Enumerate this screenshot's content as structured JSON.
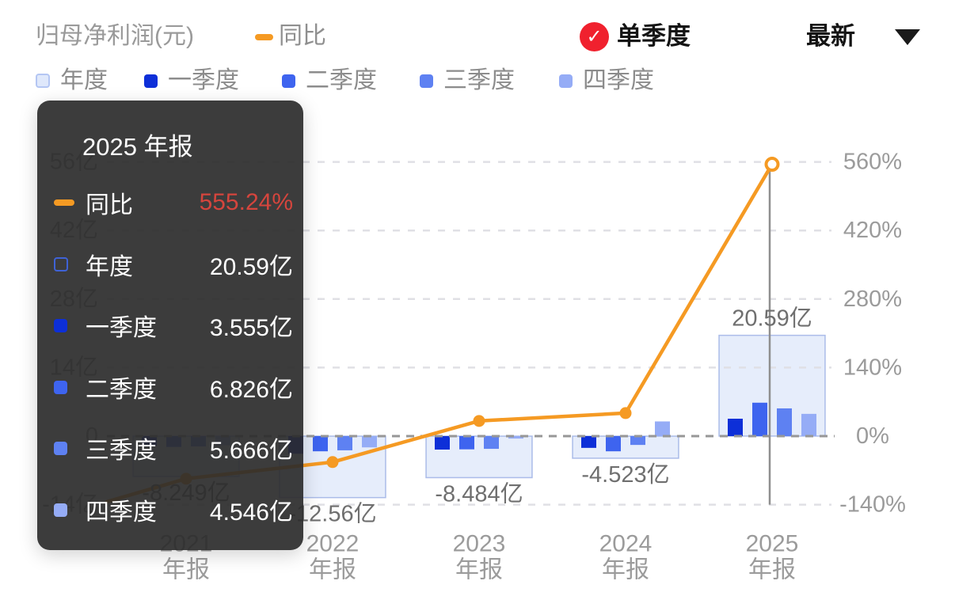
{
  "header": {
    "title": "归母净利润(元)",
    "yoy_legend_label": "同比",
    "quarter_mode_label": "单季度",
    "latest_label": "最新",
    "check_icon": "check-circle",
    "dropdown_icon": "triangle-down"
  },
  "colors": {
    "orange": "#F59A23",
    "red_badge": "#F0212E",
    "red_value": "#D5453D",
    "annual_fill": "rgba(199,214,246,0.45)",
    "annual_stroke": "rgba(125,150,220,0.6)",
    "annual_legend_fill": "#dfe8fb",
    "q1": "#0D2FD8",
    "q2": "#3E64EF",
    "q3": "#5E81F2",
    "q4": "#95ACF6",
    "grid_light": "#E0E0E5",
    "grid_zero": "#979797",
    "crosshair": "#8F8F8F",
    "axis_text": "#9B9B9B",
    "value_label": "#6F6F6F"
  },
  "legend": [
    {
      "id": "annual",
      "label": "年度"
    },
    {
      "id": "q1",
      "label": "一季度"
    },
    {
      "id": "q2",
      "label": "二季度"
    },
    {
      "id": "q3",
      "label": "三季度"
    },
    {
      "id": "q4",
      "label": "四季度"
    }
  ],
  "tooltip": {
    "title": "2025 年报",
    "rows": [
      {
        "label": "同比",
        "value": "555.24%"
      },
      {
        "label": "年度",
        "value": "20.59亿"
      },
      {
        "label": "一季度",
        "value": "3.555亿"
      },
      {
        "label": "二季度",
        "value": "6.826亿"
      },
      {
        "label": "三季度",
        "value": "5.666亿"
      },
      {
        "label": "四季度",
        "value": "4.546亿"
      }
    ]
  },
  "chart_data": {
    "type": "bar+line combo",
    "title": "归母净利润(元)",
    "categories": [
      "2021",
      "2022",
      "2023",
      "2024",
      "2025"
    ],
    "category_sub_label": "年报",
    "unit_left": "亿",
    "unit_right": "%",
    "left_axis_ticks": [
      "56亿",
      "42亿",
      "28亿",
      "14亿",
      "0",
      "-14亿"
    ],
    "left_axis_values": [
      56,
      42,
      28,
      14,
      0,
      -14
    ],
    "right_axis_ticks": [
      "560%",
      "420%",
      "280%",
      "140%",
      "0%",
      "-140%"
    ],
    "right_axis_values": [
      560,
      420,
      280,
      140,
      0,
      -140
    ],
    "annual": {
      "name": "年度",
      "values": [
        -8.249,
        -12.56,
        -8.484,
        -4.523,
        20.59
      ],
      "labels": [
        "-8.249亿",
        "-12.56亿",
        "-8.484亿",
        "-4.523亿",
        "20.59亿"
      ]
    },
    "quarter_series": [
      {
        "id": "q1",
        "name": "一季度",
        "values": [
          -2.0,
          -3.6,
          -2.75,
          -2.4,
          3.555
        ]
      },
      {
        "id": "q2",
        "name": "二季度",
        "values": [
          -2.2,
          -3.1,
          -2.7,
          -3.1,
          6.826
        ]
      },
      {
        "id": "q3",
        "name": "三季度",
        "values": [
          -2.1,
          -2.9,
          -2.6,
          -1.8,
          5.666
        ]
      },
      {
        "id": "q4",
        "name": "四季度",
        "values": [
          -1.9,
          -2.3,
          -0.5,
          3.0,
          4.546
        ]
      }
    ],
    "yoy": {
      "name": "同比",
      "values_pct": [
        -87,
        -53,
        31,
        47,
        555.24
      ],
      "lead_in_pct": -134,
      "highlight_index": 4,
      "highlight_value_text": "555.24%"
    },
    "grid": "dashed horizontal",
    "legend_position": "top-left"
  }
}
